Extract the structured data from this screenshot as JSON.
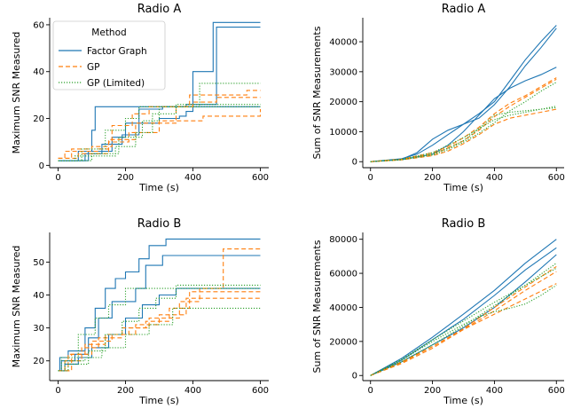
{
  "figure": {
    "legend": {
      "title": "Method",
      "entries": [
        "Factor Graph",
        "GP",
        "GP (Limited)"
      ]
    },
    "colors": {
      "Factor Graph": "#1f77b4",
      "GP": "#ff7f0e",
      "GP (Limited)": "#2ca02c"
    }
  },
  "chart_data": [
    {
      "type": "line",
      "title": "Radio A",
      "xlabel": "Time (s)",
      "ylabel": "Maximum SNR Measured",
      "xlim": [
        -25,
        625
      ],
      "ylim": [
        -1,
        63
      ],
      "xticks": [
        0,
        200,
        400,
        600
      ],
      "yticks": [
        0,
        20,
        40,
        60
      ],
      "xtick_labels": [
        "0",
        "200",
        "400",
        "600"
      ],
      "ytick_labels": [
        "0",
        "20",
        "40",
        "60"
      ],
      "grid": false,
      "legend": "upper left",
      "series": [
        {
          "group": "Factor Graph",
          "step": true,
          "x": [
            0,
            60,
            100,
            110,
            470,
            600
          ],
          "y": [
            2,
            6,
            15,
            25,
            25,
            25
          ]
        },
        {
          "group": "Factor Graph",
          "step": true,
          "x": [
            0,
            90,
            160,
            200,
            300,
            360,
            380,
            400,
            460,
            600
          ],
          "y": [
            2,
            6,
            12,
            18,
            20,
            21,
            23,
            40,
            61,
            61
          ]
        },
        {
          "group": "Factor Graph",
          "step": true,
          "x": [
            0,
            80,
            130,
            190,
            240,
            310,
            380,
            470,
            600
          ],
          "y": [
            2,
            5,
            9,
            13,
            24,
            25,
            26,
            59,
            59
          ]
        },
        {
          "group": "GP",
          "step": true,
          "x": [
            0,
            20,
            120,
            150,
            230,
            350,
            390,
            560,
            600
          ],
          "y": [
            3,
            6,
            7,
            11,
            18,
            25,
            30,
            32,
            32
          ]
        },
        {
          "group": "GP",
          "step": true,
          "x": [
            0,
            40,
            100,
            160,
            220,
            270,
            400,
            470,
            600
          ],
          "y": [
            3,
            7,
            8,
            17,
            22,
            25,
            27,
            29,
            29
          ]
        },
        {
          "group": "GP",
          "step": true,
          "x": [
            0,
            60,
            150,
            210,
            300,
            430,
            600
          ],
          "y": [
            3,
            5,
            10,
            14,
            19,
            21,
            24
          ]
        },
        {
          "group": "GP (Limited)",
          "step": true,
          "x": [
            0,
            70,
            140,
            200,
            240,
            420,
            600
          ],
          "y": [
            2,
            7,
            15,
            20,
            25,
            35,
            35
          ]
        },
        {
          "group": "GP (Limited)",
          "step": true,
          "x": [
            0,
            50,
            170,
            230,
            280,
            350,
            600
          ],
          "y": [
            2,
            4,
            8,
            14,
            22,
            26,
            26
          ]
        },
        {
          "group": "GP (Limited)",
          "step": true,
          "x": [
            0,
            100,
            180,
            250,
            300,
            600
          ],
          "y": [
            2,
            5,
            12,
            19,
            25,
            25
          ]
        }
      ]
    },
    {
      "type": "line",
      "title": "Radio A",
      "xlabel": "Time (s)",
      "ylabel": "Sum of SNR Measurements",
      "xlim": [
        -25,
        625
      ],
      "ylim": [
        -2000,
        48000
      ],
      "xticks": [
        0,
        200,
        400,
        600
      ],
      "yticks": [
        0,
        10000,
        20000,
        30000,
        40000
      ],
      "xtick_labels": [
        "0",
        "200",
        "400",
        "600"
      ],
      "ytick_labels": [
        "0",
        "10000",
        "20000",
        "30000",
        "40000"
      ],
      "grid": false,
      "series": [
        {
          "group": "Factor Graph",
          "x": [
            0,
            100,
            150,
            200,
            250,
            300,
            350,
            400,
            450,
            500,
            550,
            600
          ],
          "y": [
            0,
            1000,
            2500,
            5500,
            9000,
            12500,
            16000,
            20000,
            27000,
            34000,
            40000,
            45500
          ]
        },
        {
          "group": "Factor Graph",
          "x": [
            0,
            100,
            150,
            200,
            250,
            300,
            350,
            400,
            450,
            500,
            550,
            600
          ],
          "y": [
            0,
            800,
            3000,
            7500,
            10500,
            12500,
            14500,
            19000,
            25000,
            32000,
            38000,
            44500
          ]
        },
        {
          "group": "Factor Graph",
          "x": [
            0,
            100,
            200,
            250,
            300,
            350,
            400,
            450,
            500,
            550,
            600
          ],
          "y": [
            0,
            700,
            2500,
            5500,
            10000,
            15500,
            21000,
            24500,
            27000,
            29000,
            31500
          ]
        },
        {
          "group": "GP",
          "x": [
            0,
            100,
            200,
            250,
            300,
            350,
            400,
            450,
            500,
            550,
            600
          ],
          "y": [
            0,
            800,
            3000,
            5000,
            8000,
            11500,
            16000,
            19500,
            22000,
            25000,
            28000
          ]
        },
        {
          "group": "GP",
          "x": [
            0,
            100,
            200,
            250,
            300,
            350,
            400,
            450,
            500,
            550,
            600
          ],
          "y": [
            0,
            700,
            2500,
            4500,
            7000,
            10500,
            15000,
            18500,
            21500,
            24500,
            27500
          ]
        },
        {
          "group": "GP",
          "x": [
            0,
            100,
            200,
            250,
            300,
            350,
            400,
            450,
            500,
            550,
            600
          ],
          "y": [
            0,
            600,
            2000,
            3500,
            6000,
            9000,
            12500,
            14500,
            15500,
            16500,
            17500
          ]
        },
        {
          "group": "GP (Limited)",
          "x": [
            0,
            100,
            200,
            250,
            300,
            350,
            400,
            450,
            500,
            550,
            600
          ],
          "y": [
            0,
            700,
            2500,
            4500,
            7000,
            11000,
            15500,
            16500,
            17000,
            17500,
            18500
          ]
        },
        {
          "group": "GP (Limited)",
          "x": [
            0,
            100,
            200,
            250,
            300,
            350,
            400,
            450,
            500,
            550,
            600
          ],
          "y": [
            0,
            800,
            3000,
            5500,
            8000,
            11000,
            14000,
            15500,
            16500,
            17500,
            18000
          ]
        },
        {
          "group": "GP (Limited)",
          "x": [
            0,
            100,
            200,
            250,
            300,
            350,
            400,
            450,
            500,
            550,
            600
          ],
          "y": [
            0,
            600,
            2200,
            4000,
            6500,
            9500,
            13000,
            17000,
            20000,
            23500,
            26500
          ]
        }
      ]
    },
    {
      "type": "line",
      "title": "Radio B",
      "xlabel": "Time (s)",
      "ylabel": "Maximum SNR Measured",
      "xlim": [
        -25,
        625
      ],
      "ylim": [
        14,
        59
      ],
      "xticks": [
        0,
        200,
        400,
        600
      ],
      "yticks": [
        20,
        30,
        40,
        50
      ],
      "xtick_labels": [
        "0",
        "200",
        "400",
        "600"
      ],
      "ytick_labels": [
        "20",
        "30",
        "40",
        "50"
      ],
      "grid": false,
      "series": [
        {
          "group": "Factor Graph",
          "step": true,
          "x": [
            0,
            5,
            30,
            80,
            110,
            140,
            170,
            200,
            240,
            270,
            320,
            600
          ],
          "y": [
            17,
            21,
            23,
            30,
            36,
            42,
            45,
            47,
            51,
            55,
            57,
            57
          ]
        },
        {
          "group": "Factor Graph",
          "step": true,
          "x": [
            0,
            10,
            50,
            90,
            120,
            160,
            230,
            260,
            310,
            600
          ],
          "y": [
            17,
            20,
            22,
            27,
            33,
            38,
            42,
            49,
            52,
            52
          ]
        },
        {
          "group": "Factor Graph",
          "step": true,
          "x": [
            0,
            20,
            60,
            100,
            150,
            200,
            250,
            300,
            350,
            600
          ],
          "y": [
            17,
            19,
            21,
            24,
            28,
            33,
            37,
            40,
            42,
            42
          ]
        },
        {
          "group": "GP",
          "step": true,
          "x": [
            0,
            30,
            80,
            140,
            210,
            270,
            360,
            420,
            490,
            600
          ],
          "y": [
            17,
            22,
            25,
            28,
            30,
            33,
            38,
            42,
            54,
            54
          ]
        },
        {
          "group": "GP",
          "step": true,
          "x": [
            0,
            20,
            70,
            120,
            190,
            260,
            330,
            390,
            600
          ],
          "y": [
            17,
            20,
            24,
            27,
            30,
            32,
            36,
            41,
            41
          ]
        },
        {
          "group": "GP",
          "step": true,
          "x": [
            0,
            40,
            100,
            160,
            230,
            300,
            380,
            600
          ],
          "y": [
            17,
            22,
            26,
            28,
            31,
            34,
            39,
            39
          ]
        },
        {
          "group": "GP (Limited)",
          "step": true,
          "x": [
            0,
            10,
            60,
            110,
            150,
            200,
            600
          ],
          "y": [
            17,
            21,
            28,
            33,
            37,
            42,
            42
          ]
        },
        {
          "group": "GP (Limited)",
          "step": true,
          "x": [
            0,
            30,
            90,
            140,
            190,
            240,
            290,
            350,
            600
          ],
          "y": [
            17,
            19,
            23,
            28,
            32,
            36,
            39,
            43,
            43
          ]
        },
        {
          "group": "GP (Limited)",
          "step": true,
          "x": [
            0,
            20,
            80,
            130,
            200,
            270,
            340,
            600
          ],
          "y": [
            17,
            20,
            21,
            24,
            28,
            31,
            36,
            36
          ]
        }
      ]
    },
    {
      "type": "line",
      "title": "Radio B",
      "xlabel": "Time (s)",
      "ylabel": "Sum of SNR Measurements",
      "xlim": [
        -25,
        625
      ],
      "ylim": [
        -3000,
        84000
      ],
      "xticks": [
        0,
        200,
        400,
        600
      ],
      "yticks": [
        0,
        20000,
        40000,
        60000,
        80000
      ],
      "xtick_labels": [
        "0",
        "200",
        "400",
        "600"
      ],
      "ytick_labels": [
        "0",
        "20000",
        "40000",
        "60000",
        "80000"
      ],
      "grid": false,
      "series": [
        {
          "group": "Factor Graph",
          "x": [
            0,
            100,
            200,
            300,
            400,
            500,
            600
          ],
          "y": [
            0,
            10000,
            22500,
            36000,
            50000,
            66000,
            80000
          ]
        },
        {
          "group": "Factor Graph",
          "x": [
            0,
            100,
            200,
            300,
            400,
            500,
            600
          ],
          "y": [
            0,
            9000,
            21000,
            33000,
            47000,
            62000,
            75000
          ]
        },
        {
          "group": "Factor Graph",
          "x": [
            0,
            100,
            200,
            300,
            400,
            500,
            600
          ],
          "y": [
            0,
            8000,
            18000,
            28000,
            40000,
            55000,
            71000
          ]
        },
        {
          "group": "GP",
          "x": [
            0,
            100,
            200,
            300,
            400,
            500,
            600
          ],
          "y": [
            0,
            8000,
            17000,
            27500,
            40000,
            52000,
            64000
          ]
        },
        {
          "group": "GP",
          "x": [
            0,
            100,
            200,
            300,
            400,
            500,
            600
          ],
          "y": [
            0,
            7000,
            16000,
            27000,
            38000,
            50000,
            61000
          ]
        },
        {
          "group": "GP",
          "x": [
            0,
            100,
            200,
            300,
            400,
            500,
            600
          ],
          "y": [
            0,
            7500,
            17000,
            27000,
            36000,
            45000,
            54000
          ]
        },
        {
          "group": "GP (Limited)",
          "x": [
            0,
            100,
            200,
            300,
            400,
            500,
            600
          ],
          "y": [
            0,
            9500,
            21000,
            32000,
            43000,
            53000,
            63000
          ]
        },
        {
          "group": "GP (Limited)",
          "x": [
            0,
            100,
            200,
            300,
            400,
            500,
            600
          ],
          "y": [
            0,
            8000,
            18000,
            29000,
            41000,
            53000,
            66000
          ]
        },
        {
          "group": "GP (Limited)",
          "x": [
            0,
            100,
            200,
            300,
            350,
            400,
            450,
            500,
            550,
            600
          ],
          "y": [
            0,
            9000,
            20000,
            30000,
            34500,
            37500,
            39500,
            42000,
            47000,
            53000
          ]
        }
      ]
    }
  ]
}
